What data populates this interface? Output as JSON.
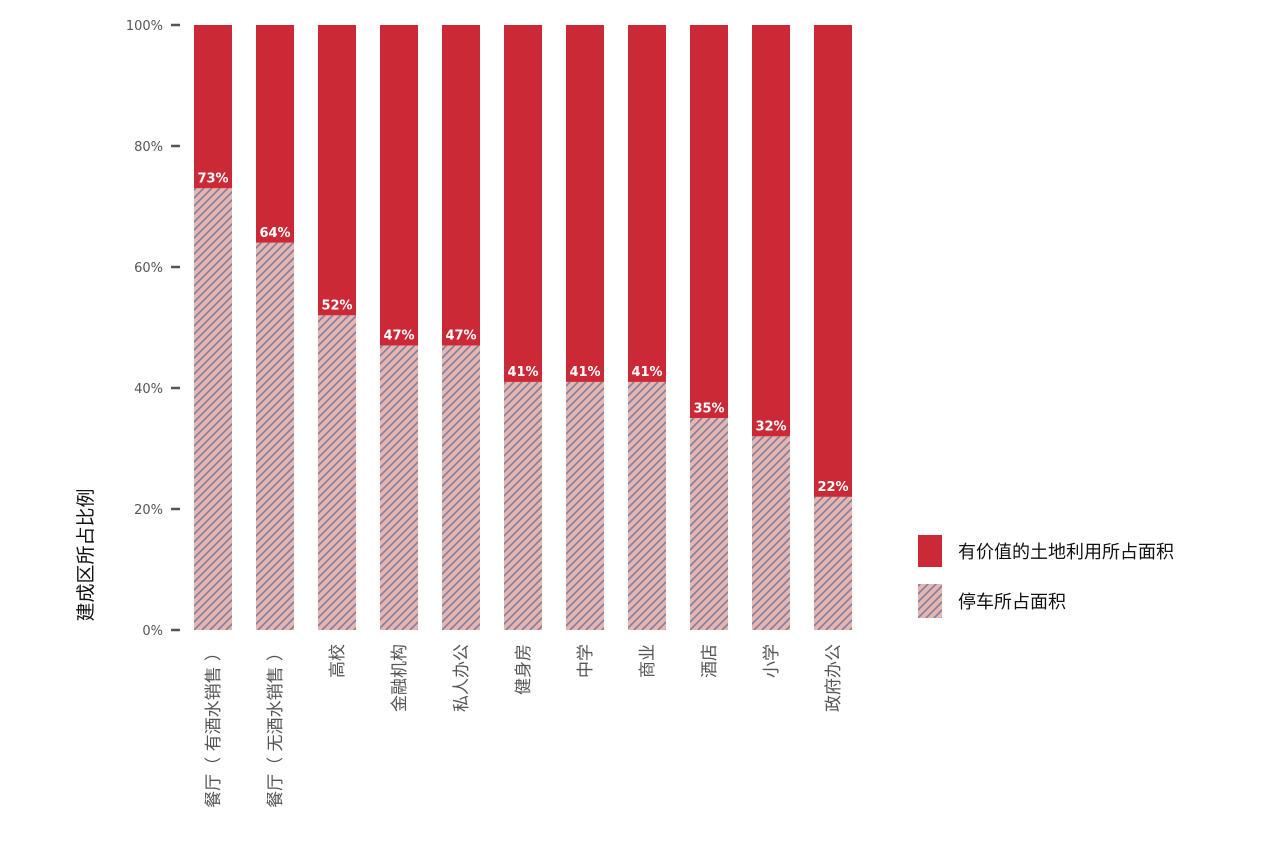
{
  "chart_data": {
    "type": "bar",
    "stacked": true,
    "categories": [
      "餐厅（ 有酒水销售 ）",
      "餐厅（ 无酒水销售 ）",
      "高校",
      "金融机构",
      "私人办公",
      "健身房",
      "中学",
      "商业",
      "酒店",
      "小学",
      "政府办公"
    ],
    "series": [
      {
        "name": "停车所占面积",
        "values": [
          73,
          64,
          52,
          47,
          47,
          41,
          41,
          41,
          35,
          32,
          22
        ],
        "pattern": "hatched",
        "fill": "#e8b4ae",
        "stroke": "#7a7fa3"
      },
      {
        "name": "有价值的土地利用所占面积",
        "values": [
          27,
          36,
          48,
          53,
          53,
          59,
          59,
          59,
          65,
          68,
          78
        ],
        "fill": "#cc2936"
      }
    ],
    "data_labels": [
      "73%",
      "64%",
      "52%",
      "47%",
      "47%",
      "41%",
      "41%",
      "41%",
      "35%",
      "32%",
      "22%"
    ],
    "ylabel": "建成区所占比例",
    "xlabel": "",
    "ylim": [
      0,
      100
    ],
    "yticks": [
      "0%",
      "20%",
      "40%",
      "60%",
      "80%",
      "100%"
    ],
    "legend": {
      "placement": "right",
      "entries": [
        "有价值的土地利用所占面积",
        "停车所占面积"
      ]
    },
    "grid": false
  }
}
